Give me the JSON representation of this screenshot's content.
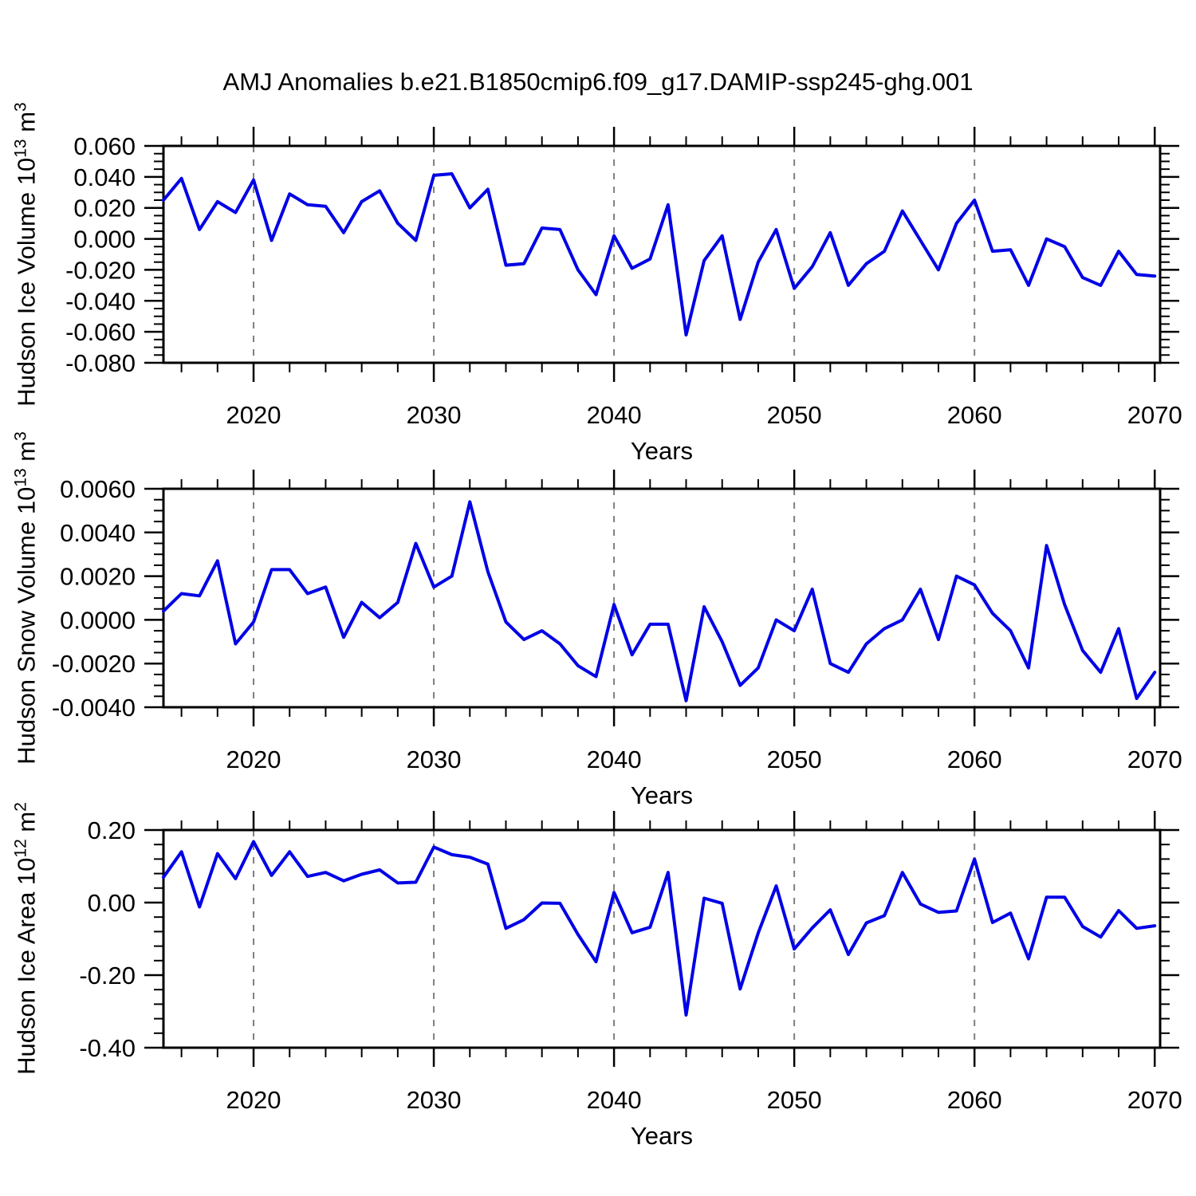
{
  "title": "AMJ Anomalies b.e21.B1850cmip6.f09_g17.DAMIP-ssp245-ghg.001",
  "colors": {
    "line": "#0000e6",
    "grid": "#7f7f7f",
    "axis": "#000000",
    "background": "#ffffff"
  },
  "years": [
    2015,
    2016,
    2017,
    2018,
    2019,
    2020,
    2021,
    2022,
    2023,
    2024,
    2025,
    2026,
    2027,
    2028,
    2029,
    2030,
    2031,
    2032,
    2033,
    2034,
    2035,
    2036,
    2037,
    2038,
    2039,
    2040,
    2041,
    2042,
    2043,
    2044,
    2045,
    2046,
    2047,
    2048,
    2049,
    2050,
    2051,
    2052,
    2053,
    2054,
    2055,
    2056,
    2057,
    2058,
    2059,
    2060,
    2061,
    2062,
    2063,
    2064,
    2065,
    2066,
    2067,
    2068,
    2069,
    2070
  ],
  "chart_data": [
    {
      "type": "line",
      "name": "hudson-ice-volume",
      "ylabel_parts": [
        {
          "text": "Hudson Ice Volume 10"
        },
        {
          "sup": "13"
        },
        {
          "text": " m"
        },
        {
          "sup": "3"
        }
      ],
      "xlabel": "Years",
      "xlim": [
        2015,
        2070.3
      ],
      "ylim": [
        -0.08,
        0.06
      ],
      "x_major_ticks": [
        2020,
        2030,
        2040,
        2050,
        2060,
        2070
      ],
      "x_tick_labels": [
        "2020",
        "2030",
        "2040",
        "2050",
        "2060",
        "2070"
      ],
      "x_minor_step": 2,
      "grid_x": [
        2020,
        2030,
        2040,
        2050,
        2060
      ],
      "y_ticks": [
        0.06,
        0.04,
        0.02,
        0.0,
        -0.02,
        -0.04,
        -0.06,
        -0.08
      ],
      "y_tick_labels": [
        "0.060",
        "0.040",
        "0.020",
        "0.000",
        "-0.020",
        "-0.040",
        "-0.060",
        "-0.080"
      ],
      "y_minor_step": 0.005,
      "values": [
        0.025,
        0.039,
        0.006,
        0.024,
        0.017,
        0.038,
        -0.001,
        0.029,
        0.022,
        0.021,
        0.004,
        0.024,
        0.031,
        0.01,
        -0.001,
        0.041,
        0.042,
        0.02,
        0.032,
        -0.017,
        -0.016,
        0.007,
        0.006,
        -0.02,
        -0.036,
        0.002,
        -0.019,
        -0.013,
        0.022,
        -0.062,
        -0.014,
        0.002,
        -0.052,
        -0.015,
        0.006,
        -0.032,
        -0.018,
        0.004,
        -0.03,
        -0.016,
        -0.008,
        0.018,
        -0.001,
        -0.02,
        0.01,
        0.025,
        -0.008,
        -0.007,
        -0.03,
        0.0,
        -0.005,
        -0.025,
        -0.03,
        -0.008,
        -0.023,
        -0.024
      ]
    },
    {
      "type": "line",
      "name": "hudson-snow-volume",
      "ylabel_parts": [
        {
          "text": "Hudson Snow Volume 10"
        },
        {
          "sup": "13"
        },
        {
          "text": " m"
        },
        {
          "sup": "3"
        }
      ],
      "xlabel": "Years",
      "xlim": [
        2015,
        2070.3
      ],
      "ylim": [
        -0.004,
        0.006
      ],
      "x_major_ticks": [
        2020,
        2030,
        2040,
        2050,
        2060,
        2070
      ],
      "x_tick_labels": [
        "2020",
        "2030",
        "2040",
        "2050",
        "2060",
        "2070"
      ],
      "x_minor_step": 2,
      "grid_x": [
        2020,
        2030,
        2040,
        2050,
        2060
      ],
      "y_ticks": [
        0.006,
        0.004,
        0.002,
        0.0,
        -0.002,
        -0.004
      ],
      "y_tick_labels": [
        "0.0060",
        "0.0040",
        "0.0020",
        "0.0000",
        "-0.0020",
        "-0.0040"
      ],
      "y_minor_step": 0.0005,
      "values": [
        0.0004,
        0.0012,
        0.0011,
        0.0027,
        -0.0011,
        -0.0001,
        0.0023,
        0.0023,
        0.0012,
        0.0015,
        -0.0008,
        0.0008,
        0.0001,
        0.0008,
        0.0035,
        0.0015,
        0.002,
        0.0054,
        0.0022,
        -0.0001,
        -0.0009,
        -0.0005,
        -0.0011,
        -0.0021,
        -0.0026,
        0.0007,
        -0.0016,
        -0.0002,
        -0.0002,
        -0.0037,
        0.0006,
        -0.001,
        -0.003,
        -0.0022,
        0.0,
        -0.0005,
        0.0014,
        -0.002,
        -0.0024,
        -0.0011,
        -0.0004,
        0.0,
        0.0014,
        -0.0009,
        0.002,
        0.0016,
        0.0003,
        -0.0005,
        -0.0022,
        0.0034,
        0.0007,
        -0.0014,
        -0.0024,
        -0.0004,
        -0.0036,
        -0.0024
      ]
    },
    {
      "type": "line",
      "name": "hudson-ice-area",
      "ylabel_parts": [
        {
          "text": "Hudson Ice Area 10"
        },
        {
          "sup": "12"
        },
        {
          "text": " m"
        },
        {
          "sup": "2"
        }
      ],
      "xlabel": "Years",
      "xlim": [
        2015,
        2070.3
      ],
      "ylim": [
        -0.4,
        0.2
      ],
      "x_major_ticks": [
        2020,
        2030,
        2040,
        2050,
        2060,
        2070
      ],
      "x_tick_labels": [
        "2020",
        "2030",
        "2040",
        "2050",
        "2060",
        "2070"
      ],
      "x_minor_step": 2,
      "grid_x": [
        2020,
        2030,
        2040,
        2050,
        2060
      ],
      "y_ticks": [
        0.2,
        0.0,
        -0.2,
        -0.4
      ],
      "y_tick_labels": [
        "0.20",
        "0.00",
        "-0.20",
        "-0.40"
      ],
      "y_minor_step": 0.04,
      "values": [
        0.07,
        0.14,
        -0.012,
        0.135,
        0.066,
        0.168,
        0.075,
        0.14,
        0.072,
        0.083,
        0.06,
        0.078,
        0.09,
        0.054,
        0.056,
        0.153,
        0.132,
        0.125,
        0.106,
        -0.071,
        -0.047,
        -0.001,
        -0.002,
        -0.088,
        -0.163,
        0.028,
        -0.083,
        -0.068,
        0.083,
        -0.31,
        0.012,
        -0.002,
        -0.238,
        -0.084,
        0.046,
        -0.128,
        -0.07,
        -0.02,
        -0.143,
        -0.056,
        -0.036,
        0.083,
        -0.004,
        -0.027,
        -0.023,
        0.12,
        -0.055,
        -0.029,
        -0.155,
        0.015,
        0.015,
        -0.066,
        -0.095,
        -0.022,
        -0.071,
        -0.064
      ]
    }
  ]
}
